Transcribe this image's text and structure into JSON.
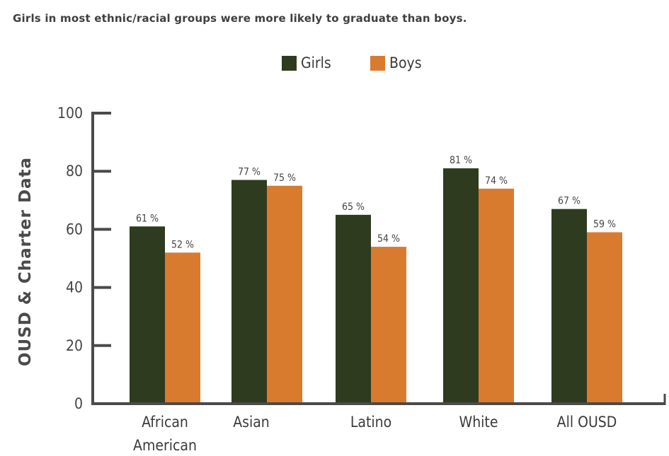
{
  "chart_data": {
    "type": "bar",
    "title": "Girls in most ethnic/racial groups were more likely to graduate than boys.",
    "xlabel": "",
    "ylabel": "OUSD & Charter Data",
    "categories": [
      "African American",
      "Asian",
      "Latino",
      "White",
      "All OUSD"
    ],
    "category_lines": [
      [
        "African",
        "American"
      ],
      [
        "Asian"
      ],
      [
        "Latino"
      ],
      [
        "White"
      ],
      [
        "All OUSD"
      ]
    ],
    "series": [
      {
        "name": "Girls",
        "values": [
          61,
          77,
          65,
          81,
          67
        ],
        "labels": [
          "61 %",
          "77 %",
          "65 %",
          "81 %",
          "67 %"
        ],
        "color": "#2f3b1f"
      },
      {
        "name": "Boys",
        "values": [
          52,
          75,
          54,
          74,
          59
        ],
        "labels": [
          "52 %",
          "75 %",
          "54 %",
          "74 %",
          "59 %"
        ],
        "color": "#d97b2e"
      }
    ],
    "ylim": [
      0,
      100
    ],
    "yticks": [
      0,
      20,
      40,
      60,
      80,
      100
    ],
    "grid": false,
    "legend_position": "top-center"
  }
}
